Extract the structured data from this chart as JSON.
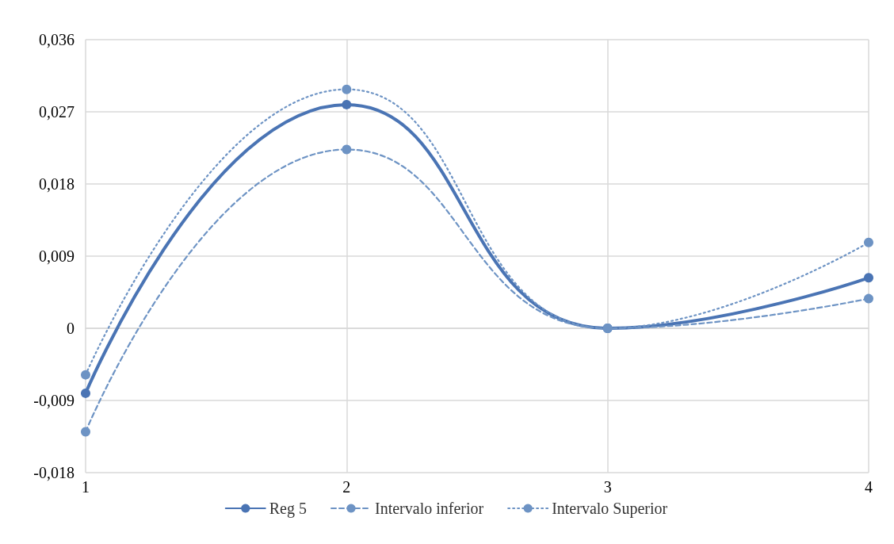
{
  "chart_data": {
    "type": "line",
    "categories": [
      "1",
      "2",
      "3",
      "4"
    ],
    "series": [
      {
        "name": "Reg 5",
        "color": "#4a74b4",
        "values": [
          -0.0081,
          0.0279,
          0,
          0.0063
        ],
        "line_style": "solid"
      },
      {
        "name": "Intervalo inferior",
        "color": "#6d93c4",
        "values": [
          -0.0129,
          0.0223,
          0,
          0.0037
        ],
        "line_style": "dashed"
      },
      {
        "name": "Intervalo Superior",
        "color": "#6d93c4",
        "values": [
          -0.0058,
          0.0298,
          0,
          0.0107
        ],
        "line_style": "dotted"
      }
    ],
    "ylim": [
      -0.018,
      0.036
    ],
    "yticks": [
      {
        "value": -0.018,
        "label": "-0,018"
      },
      {
        "value": -0.009,
        "label": "-0,009"
      },
      {
        "value": 0,
        "label": "0"
      },
      {
        "value": 0.009,
        "label": "0,009"
      },
      {
        "value": 0.018,
        "label": "0,018"
      },
      {
        "value": 0.027,
        "label": "0,027"
      },
      {
        "value": 0.036,
        "label": "0,036"
      }
    ],
    "grid": true,
    "legend": "bottom",
    "marker": "circle"
  }
}
